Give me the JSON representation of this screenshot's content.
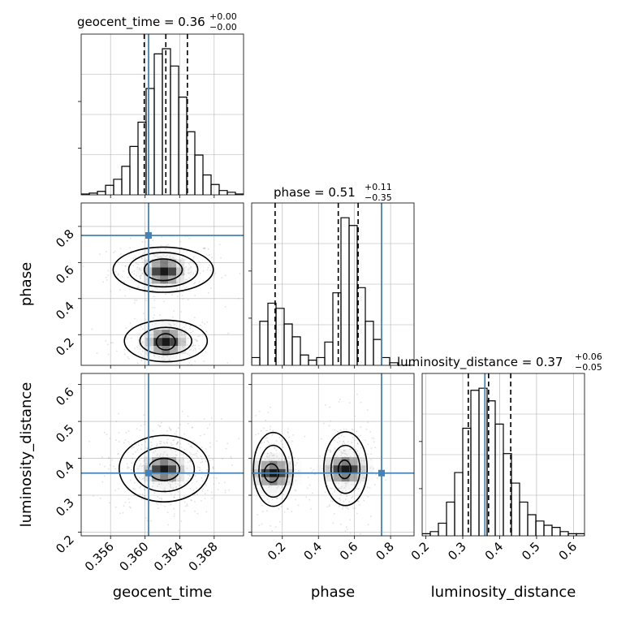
{
  "chart_data": {
    "type": "corner",
    "parameters": [
      "geocent_time",
      "phase",
      "luminosity_distance"
    ],
    "truths": {
      "geocent_time": 0.3604,
      "phase": 0.75,
      "luminosity_distance": 0.36
    },
    "colors": {
      "truth": "#4682b4",
      "hist": "#000000",
      "grid": "#b0b0b0"
    },
    "titles": [
      {
        "param": "geocent_time",
        "text": "geocent_time = 0.36",
        "sup": "+0.00",
        "sub": "−0.00"
      },
      {
        "param": "phase",
        "text": "phase = 0.51",
        "sup": "+0.11",
        "sub": "−0.35"
      },
      {
        "param": "luminosity_distance",
        "text": "luminosity_distance = 0.37",
        "sup": "+0.06",
        "sub": "−0.05"
      }
    ],
    "axis_labels": {
      "geocent_time": "geocent_time",
      "phase": "phase",
      "luminosity_distance": "luminosity_distance"
    },
    "ranges": {
      "geocent_time": [
        0.3526,
        0.3714
      ],
      "phase": [
        0.03,
        0.93
      ],
      "luminosity_distance": [
        0.19,
        0.63
      ]
    },
    "ticks": {
      "geocent_time": [
        "0.356",
        "0.360",
        "0.364",
        "0.368"
      ],
      "phase": [
        "0.2",
        "0.4",
        "0.6",
        "0.8"
      ],
      "luminosity_distance": [
        "0.2",
        "0.3",
        "0.4",
        "0.5",
        "0.6"
      ]
    },
    "quantiles": {
      "geocent_time": [
        0.3599,
        0.3624,
        0.3649
      ],
      "phase": [
        0.16,
        0.51,
        0.62
      ],
      "luminosity_distance": [
        0.315,
        0.37,
        0.43
      ]
    },
    "histograms": {
      "geocent_time": {
        "edges": [
          0.3526,
          0.35354,
          0.35448,
          0.35542,
          0.35636,
          0.3573,
          0.35824,
          0.35918,
          0.36012,
          0.36106,
          0.362,
          0.36294,
          0.36388,
          0.36482,
          0.36576,
          0.3667,
          0.36764,
          0.36858,
          0.36952,
          0.37046,
          0.3714
        ],
        "counts": [
          1,
          2,
          4,
          11,
          18,
          33,
          56,
          84,
          123,
          163,
          169,
          149,
          113,
          73,
          46,
          23,
          12,
          5,
          3,
          1
        ]
      },
      "phase": {
        "edges": [
          0.03,
          0.075,
          0.12,
          0.165,
          0.21,
          0.255,
          0.3,
          0.345,
          0.39,
          0.435,
          0.48,
          0.525,
          0.57,
          0.615,
          0.66,
          0.705,
          0.75,
          0.795,
          0.84,
          0.885,
          0.93
        ],
        "counts": [
          3,
          17,
          24,
          22,
          16,
          11,
          4,
          2,
          3,
          9,
          28,
          57,
          54,
          30,
          17,
          10,
          3,
          1,
          0,
          0
        ]
      },
      "luminosity_distance": {
        "edges": [
          0.19,
          0.212,
          0.234,
          0.256,
          0.278,
          0.3,
          0.322,
          0.344,
          0.366,
          0.388,
          0.41,
          0.432,
          0.454,
          0.476,
          0.498,
          0.52,
          0.542,
          0.564,
          0.586,
          0.608,
          0.63
        ],
        "counts": [
          1,
          2,
          6,
          16,
          30,
          51,
          69,
          70,
          64,
          53,
          39,
          25,
          16,
          10,
          7,
          5,
          4,
          2,
          1,
          1
        ]
      }
    },
    "density_2d": {
      "phase_vs_geocent_time": {
        "modes": [
          {
            "x": 0.3622,
            "y": 0.55
          },
          {
            "x": 0.3624,
            "y": 0.16
          }
        ],
        "contours": [
          {
            "cx": 0.3621,
            "cy": 0.56,
            "rx": 0.0022,
            "ry": 0.06,
            "level": 1
          },
          {
            "cx": 0.3621,
            "cy": 0.56,
            "rx": 0.004,
            "ry": 0.095,
            "level": 2
          },
          {
            "cx": 0.3621,
            "cy": 0.56,
            "rx": 0.0058,
            "ry": 0.125,
            "level": 3
          },
          {
            "cx": 0.3624,
            "cy": 0.16,
            "rx": 0.0011,
            "ry": 0.045,
            "level": 1
          },
          {
            "cx": 0.3624,
            "cy": 0.165,
            "rx": 0.003,
            "ry": 0.075,
            "level": 2
          },
          {
            "cx": 0.3624,
            "cy": 0.165,
            "rx": 0.0048,
            "ry": 0.115,
            "level": 3
          }
        ]
      },
      "luminosity_distance_vs_geocent_time": {
        "modes": [
          {
            "x": 0.3622,
            "y": 0.37
          }
        ],
        "contours": [
          {
            "cx": 0.3622,
            "cy": 0.37,
            "rx": 0.0018,
            "ry": 0.03,
            "level": 1
          },
          {
            "cx": 0.3622,
            "cy": 0.37,
            "rx": 0.0035,
            "ry": 0.06,
            "level": 2
          },
          {
            "cx": 0.3622,
            "cy": 0.372,
            "rx": 0.0052,
            "ry": 0.09,
            "level": 3
          }
        ]
      },
      "luminosity_distance_vs_phase": {
        "modes": [
          {
            "x": 0.15,
            "y": 0.36
          },
          {
            "x": 0.55,
            "y": 0.37
          }
        ],
        "contours": [
          {
            "cx": 0.14,
            "cy": 0.36,
            "rx": 0.04,
            "ry": 0.025,
            "level": 1
          },
          {
            "cx": 0.15,
            "cy": 0.365,
            "rx": 0.08,
            "ry": 0.07,
            "level": 2
          },
          {
            "cx": 0.15,
            "cy": 0.37,
            "rx": 0.11,
            "ry": 0.1,
            "level": 3
          },
          {
            "cx": 0.545,
            "cy": 0.37,
            "rx": 0.035,
            "ry": 0.025,
            "level": 1
          },
          {
            "cx": 0.55,
            "cy": 0.37,
            "rx": 0.08,
            "ry": 0.065,
            "level": 2
          },
          {
            "cx": 0.55,
            "cy": 0.372,
            "rx": 0.12,
            "ry": 0.1,
            "level": 3
          }
        ]
      }
    },
    "grid": true
  }
}
